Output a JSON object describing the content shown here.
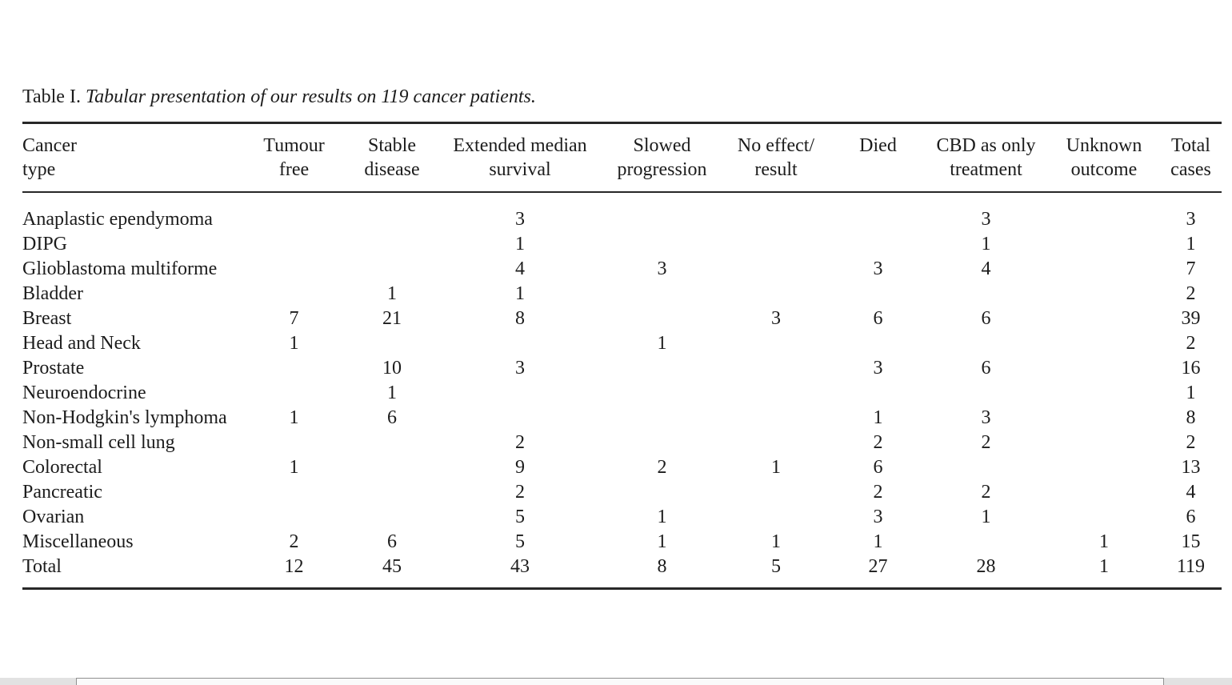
{
  "caption": {
    "label": "Table I.",
    "text": "Tabular presentation of our results on 119 cancer patients."
  },
  "table": {
    "columns": [
      {
        "line1": "Cancer",
        "line2": "type"
      },
      {
        "line1": "Tumour",
        "line2": "free"
      },
      {
        "line1": "Stable",
        "line2": "disease"
      },
      {
        "line1": "Extended median",
        "line2": "survival"
      },
      {
        "line1": "Slowed",
        "line2": "progression"
      },
      {
        "line1": "No effect/",
        "line2": "result"
      },
      {
        "line1": "Died",
        "line2": ""
      },
      {
        "line1": "CBD as only",
        "line2": "treatment"
      },
      {
        "line1": "Unknown",
        "line2": "outcome"
      },
      {
        "line1": "Total",
        "line2": "cases"
      }
    ],
    "rows": [
      {
        "name": "Anaplastic ependymoma",
        "values": [
          "",
          "",
          "3",
          "",
          "",
          "",
          "3",
          "",
          "3"
        ]
      },
      {
        "name": "DIPG",
        "values": [
          "",
          "",
          "1",
          "",
          "",
          "",
          "1",
          "",
          "1"
        ]
      },
      {
        "name": "Glioblastoma multiforme",
        "values": [
          "",
          "",
          "4",
          "3",
          "",
          "3",
          "4",
          "",
          "7"
        ]
      },
      {
        "name": "Bladder",
        "values": [
          "",
          "1",
          "1",
          "",
          "",
          "",
          "",
          "",
          "2"
        ]
      },
      {
        "name": "Breast",
        "values": [
          "7",
          "21",
          "8",
          "",
          "3",
          "6",
          "6",
          "",
          "39"
        ]
      },
      {
        "name": "Head and Neck",
        "values": [
          "1",
          "",
          "",
          "1",
          "",
          "",
          "",
          "",
          "2"
        ]
      },
      {
        "name": "Prostate",
        "values": [
          "",
          "10",
          "3",
          "",
          "",
          "3",
          "6",
          "",
          "16"
        ]
      },
      {
        "name": "Neuroendocrine",
        "values": [
          "",
          "1",
          "",
          "",
          "",
          "",
          "",
          "",
          "1"
        ]
      },
      {
        "name": "Non-Hodgkin's lymphoma",
        "values": [
          "1",
          "6",
          "",
          "",
          "",
          "1",
          "3",
          "",
          "8"
        ]
      },
      {
        "name": "Non-small cell lung",
        "values": [
          "",
          "",
          "2",
          "",
          "",
          "2",
          "2",
          "",
          "2"
        ]
      },
      {
        "name": "Colorectal",
        "values": [
          "1",
          "",
          "9",
          "2",
          "1",
          "6",
          "",
          "",
          "13"
        ]
      },
      {
        "name": "Pancreatic",
        "values": [
          "",
          "",
          "2",
          "",
          "",
          "2",
          "2",
          "",
          "4"
        ]
      },
      {
        "name": "Ovarian",
        "values": [
          "",
          "",
          "5",
          "1",
          "",
          "3",
          "1",
          "",
          "6"
        ]
      },
      {
        "name": "Miscellaneous",
        "values": [
          "2",
          "6",
          "5",
          "1",
          "1",
          "1",
          "",
          "1",
          "15"
        ]
      },
      {
        "name": "Total",
        "values": [
          "12",
          "45",
          "43",
          "8",
          "5",
          "27",
          "28",
          "1",
          "119"
        ]
      }
    ]
  },
  "colors": {
    "text": "#1c1c1c",
    "rule": "#282828",
    "bottom_corner": "#e2e2e2",
    "bottom_panel": "#fafafa",
    "bottom_edge_border": "#909090"
  }
}
